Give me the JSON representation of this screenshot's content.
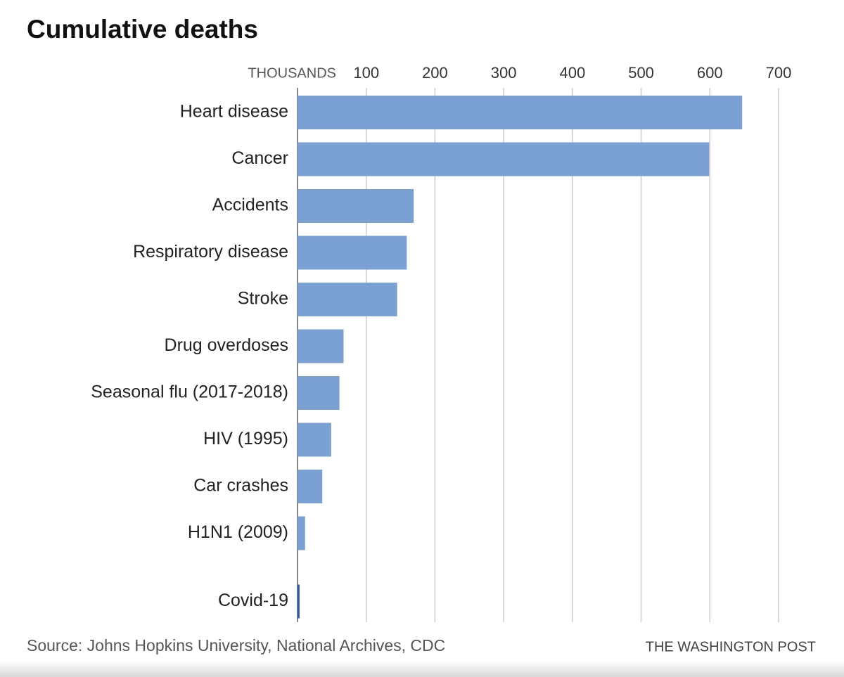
{
  "chart_data": {
    "type": "barh",
    "title": "Cumulative deaths",
    "x_axis_label": "THOUSANDS",
    "categories": [
      "Heart disease",
      "Cancer",
      "Accidents",
      "Respiratory disease",
      "Stroke",
      "Drug overdoses",
      "Seasonal flu (2017-2018)",
      "HIV (1995)",
      "Car crashes",
      "H1N1 (2009)",
      "Covid-19"
    ],
    "values": [
      647,
      599,
      169,
      159,
      145,
      67,
      61,
      49,
      36,
      11,
      3
    ],
    "colors": [
      "#7ba0d4",
      "#7ba0d4",
      "#7ba0d4",
      "#7ba0d4",
      "#7ba0d4",
      "#7ba0d4",
      "#7ba0d4",
      "#7ba0d4",
      "#7ba0d4",
      "#7ba0d4",
      "#2a5ca8"
    ],
    "xlim": [
      0,
      700
    ],
    "xticks": [
      100,
      200,
      300,
      400,
      500,
      600,
      700
    ],
    "grid": true,
    "source": "Source: Johns Hopkins University, National Archives, CDC",
    "credit": "THE WASHINGTON POST"
  }
}
